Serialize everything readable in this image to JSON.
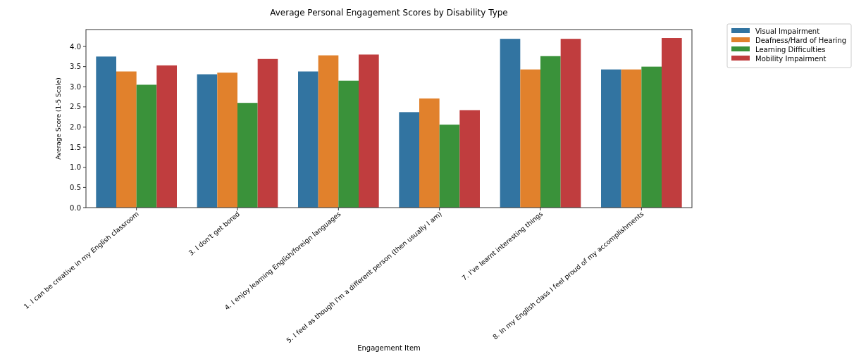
{
  "chart_data": {
    "type": "bar",
    "title": "Average Personal Engagement Scores by Disability Type",
    "xlabel": "Engagement Item",
    "ylabel": "Average Score (1-5 Scale)",
    "categories": [
      "1. I can be creative in my English classroom",
      "3. I don't get bored",
      "4. I enjoy learning English/foreign languages",
      "5. I feel as though I'm a different person (then usually I am)",
      "7. I've learnt interesting things",
      "8. In my English class I feel proud of my accomplishments"
    ],
    "series": [
      {
        "name": "Visual Impairment",
        "color": "#3274a1",
        "values": [
          3.75,
          3.31,
          3.38,
          2.37,
          4.19,
          3.43
        ]
      },
      {
        "name": "Deafness/Hard of Hearing",
        "color": "#e1812c",
        "values": [
          3.38,
          3.35,
          3.78,
          2.71,
          3.43,
          3.43
        ]
      },
      {
        "name": "Learning Difficulties",
        "color": "#3a923a",
        "values": [
          3.05,
          2.6,
          3.15,
          2.06,
          3.76,
          3.5
        ]
      },
      {
        "name": "Mobility Impairment",
        "color": "#c03d3e",
        "values": [
          3.53,
          3.69,
          3.8,
          2.42,
          4.19,
          4.21
        ]
      }
    ],
    "ylim": [
      0,
      4.42
    ],
    "yticks": [
      {
        "value": 0,
        "label": "0.0"
      },
      {
        "value": 0.5,
        "label": "0.5"
      },
      {
        "value": 1,
        "label": "1.0"
      },
      {
        "value": 1.5,
        "label": "1.5"
      },
      {
        "value": 2,
        "label": "2.0"
      },
      {
        "value": 2.5,
        "label": "2.5"
      },
      {
        "value": 3,
        "label": "3.0"
      },
      {
        "value": 3.5,
        "label": "3.5"
      },
      {
        "value": 4,
        "label": "4.0"
      }
    ],
    "legend": "top right"
  }
}
